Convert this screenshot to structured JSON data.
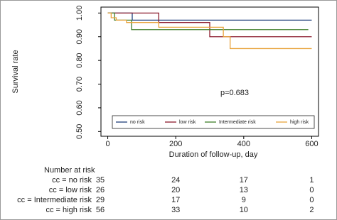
{
  "chart_data": {
    "type": "step",
    "y_label": "Survival rate",
    "x_label": "Duration of follow-up, day",
    "annotation": "p=0.683",
    "xlim": [
      -20,
      620
    ],
    "ylim": [
      0.48,
      1.025
    ],
    "xticks": [
      0,
      200,
      400,
      600
    ],
    "yticks": [
      {
        "value": 0.5,
        "label": "0.50"
      },
      {
        "value": 0.6,
        "label": "0.60"
      },
      {
        "value": 0.7,
        "label": "0.70"
      },
      {
        "value": 0.8,
        "label": "0.80"
      },
      {
        "value": 0.9,
        "label": "0.90"
      },
      {
        "value": 1.0,
        "label": "1.00"
      }
    ],
    "series": [
      {
        "name": "no risk",
        "color": "#1f3f7a",
        "x": [
          0,
          72,
          600
        ],
        "values": [
          1.0,
          0.97,
          0.97
        ]
      },
      {
        "name": "low risk",
        "color": "#8b1a2c",
        "x": [
          0,
          150,
          300,
          600
        ],
        "values": [
          1.0,
          0.96,
          0.9,
          0.9
        ]
      },
      {
        "name": "Intermediate risk",
        "color": "#3f7f2a",
        "x": [
          0,
          20,
          70,
          590
        ],
        "values": [
          1.0,
          0.97,
          0.93,
          0.93
        ]
      },
      {
        "name": "high risk",
        "color": "#e8a33c",
        "x": [
          0,
          10,
          25,
          55,
          150,
          340,
          360,
          600
        ],
        "values": [
          1.0,
          0.98,
          0.97,
          0.96,
          0.94,
          0.9,
          0.85,
          0.85
        ]
      }
    ],
    "risk_table": {
      "title": "Number at risk",
      "rows": [
        {
          "label": "cc = no risk",
          "values": [
            35,
            24,
            17,
            1
          ]
        },
        {
          "label": "cc = low risk",
          "values": [
            26,
            20,
            13,
            0
          ]
        },
        {
          "label": "cc = Intermediate risk",
          "values": [
            29,
            17,
            9,
            0
          ]
        },
        {
          "label": "cc = high risk",
          "values": [
            56,
            33,
            10,
            2
          ]
        }
      ]
    }
  }
}
